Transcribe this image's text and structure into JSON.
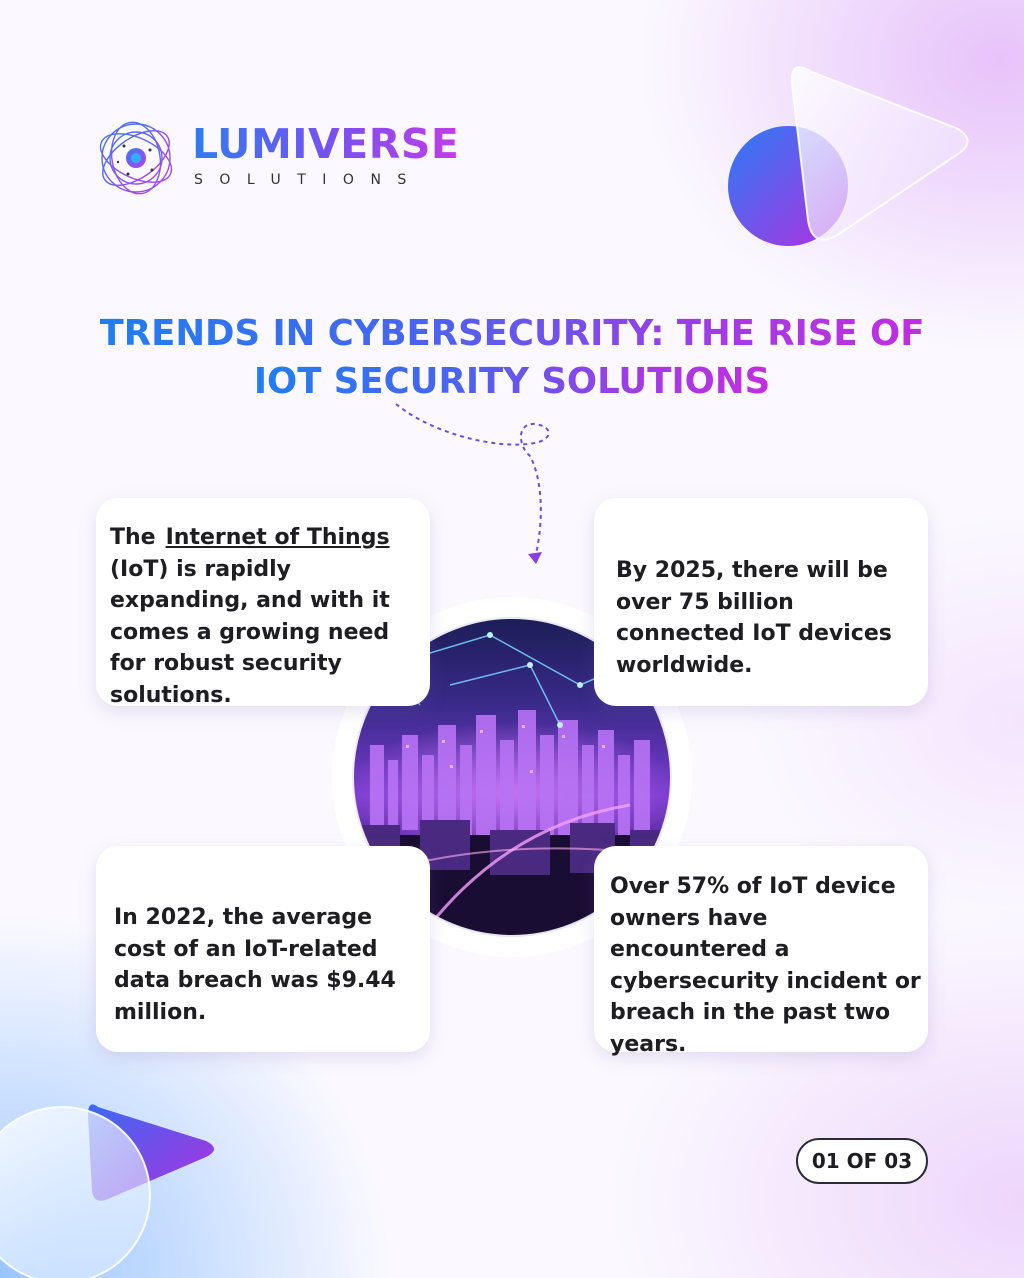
{
  "brand": {
    "name": "LUMIVERSE",
    "tagline": "SOLUTIONS"
  },
  "title": {
    "line1": "TRENDS IN CYBERSECURITY: THE RISE OF",
    "line2": "IOT SECURITY SOLUTIONS"
  },
  "cards": {
    "iot_intro": {
      "lead": "The",
      "link": "Internet of Things",
      "rest": "(IoT) is rapidly expanding, and with it comes a growing need for robust security solutions."
    },
    "devices_2025": "By 2025, there will be over 75 billion connected IoT devices worldwide.",
    "breach_cost": "In 2022, the average cost of an IoT-related data breach was $9.44 million.",
    "incident_rate": "Over 57% of IoT device owners have encountered a cybersecurity incident or breach in the past two years."
  },
  "page_counter": "01 OF 03",
  "icons": {
    "logo": "orbit-logo-icon",
    "deco_top": "play-triangle-icon",
    "deco_bottom": "play-triangle-icon",
    "image": "city-night-network-image"
  },
  "colors": {
    "gradient_start": "#1f7ff2",
    "gradient_end": "#c12ee0",
    "text": "#1d1d22"
  }
}
